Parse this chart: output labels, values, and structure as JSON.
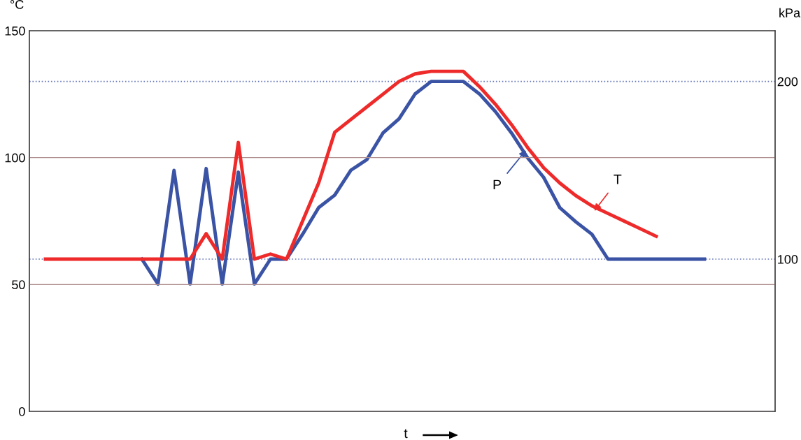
{
  "chart_data": {
    "type": "line",
    "xlabel": "t",
    "ylabel": "°C",
    "y2label": "kPa",
    "categories": [
      null,
      null,
      null,
      null,
      null,
      null,
      null,
      null,
      null,
      null,
      null,
      null,
      null,
      null,
      null,
      null,
      null,
      null,
      null,
      null,
      null,
      null,
      null,
      null,
      null,
      null,
      null,
      null,
      null,
      null,
      null,
      null,
      null,
      null,
      null,
      null,
      null,
      null,
      null,
      null,
      null,
      null
    ],
    "series": [
      {
        "name": "T",
        "color": "#ee2a2a",
        "values": [
          60,
          60,
          60,
          60,
          60,
          60,
          60,
          60,
          60,
          60,
          70,
          60,
          106,
          60,
          62,
          60,
          75,
          90,
          110,
          115,
          120,
          125,
          130,
          133,
          134,
          134,
          134,
          128,
          121,
          113,
          104,
          96,
          90,
          85,
          81,
          78,
          75,
          72,
          69,
          null,
          null,
          null
        ]
      },
      {
        "name": "P",
        "color": "#3a53a4",
        "axis": "y2",
        "values": [
          null,
          null,
          null,
          null,
          null,
          null,
          100,
          86,
          150,
          86,
          151,
          86,
          149,
          86,
          100,
          100,
          114,
          129,
          136,
          150,
          156,
          171,
          179,
          193,
          200,
          200,
          200,
          193,
          183,
          171,
          157,
          146,
          129,
          121,
          114,
          100,
          100,
          100,
          100,
          100,
          100,
          100
        ]
      }
    ],
    "ylim": [
      0,
      150
    ],
    "yticks": [
      0,
      50,
      100,
      150
    ],
    "y2lim": [
      14.29,
      228.57
    ],
    "y2ticks": [
      100,
      200
    ],
    "grid": "y",
    "legend": false,
    "marker": "none",
    "line_style": "solid"
  }
}
